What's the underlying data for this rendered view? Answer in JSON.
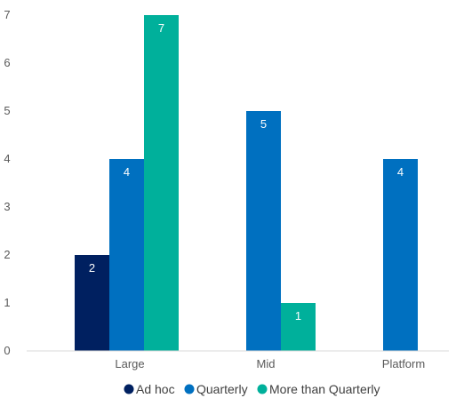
{
  "chart_data": {
    "type": "bar",
    "categories": [
      "Large",
      "Mid",
      "Platform"
    ],
    "series": [
      {
        "name": "Ad hoc",
        "color": "#002060",
        "values": [
          2,
          null,
          null
        ]
      },
      {
        "name": "Quarterly",
        "color": "#0070C0",
        "values": [
          4,
          5,
          4
        ]
      },
      {
        "name": "More than Quarterly",
        "color": "#00B09B",
        "values": [
          7,
          1,
          null
        ]
      }
    ],
    "ylim": [
      0,
      7
    ],
    "yticks": [
      0,
      1,
      2,
      3,
      4,
      5,
      6,
      7
    ],
    "grid": false,
    "legend": "bottom",
    "data_labels": true
  }
}
